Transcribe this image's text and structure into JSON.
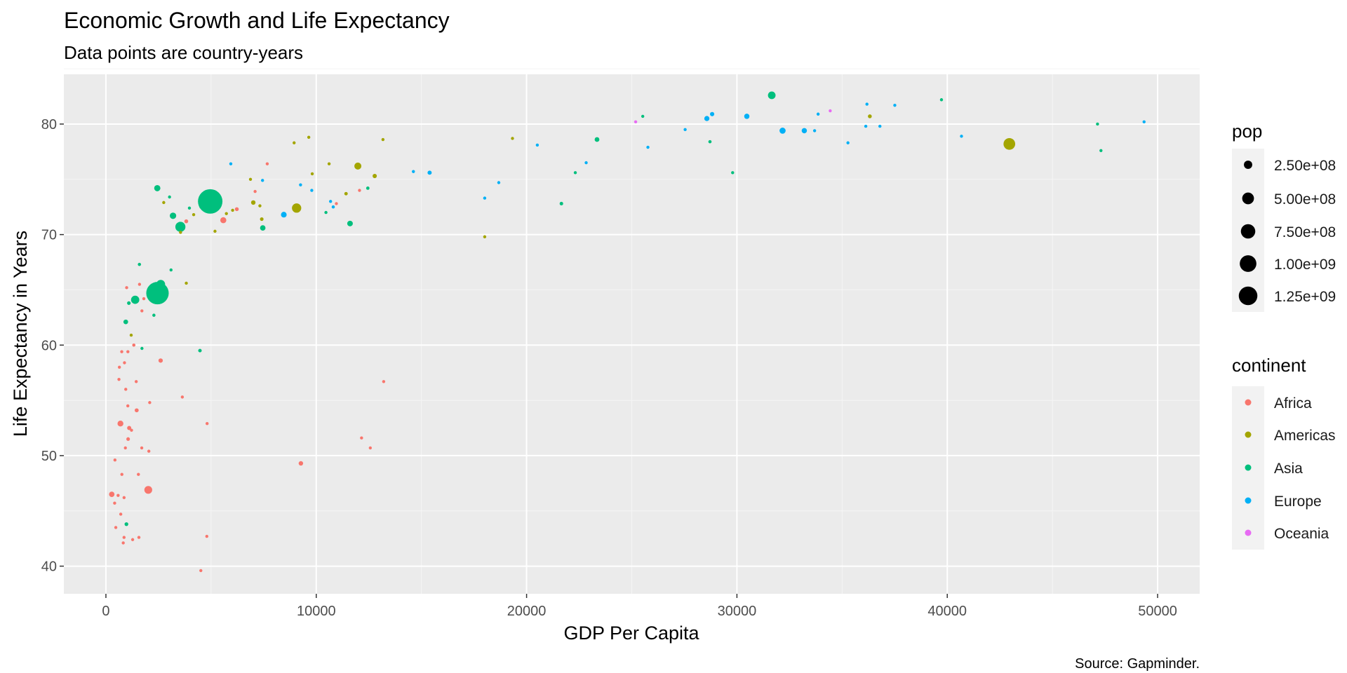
{
  "chart_data": {
    "type": "scatter",
    "title": "Economic Growth and Life Expectancy",
    "subtitle": "Data points are country-years",
    "xlabel": "GDP Per Capita",
    "ylabel": "Life Expectancy in Years",
    "caption": "Source: Gapminder.",
    "xlim": [
      -2000,
      52000
    ],
    "ylim": [
      37.5,
      84.5
    ],
    "x_ticks": [
      0,
      10000,
      20000,
      30000,
      40000,
      50000
    ],
    "x_tick_labels": [
      "0",
      "10000",
      "20000",
      "30000",
      "40000",
      "50000"
    ],
    "y_ticks": [
      40,
      50,
      60,
      70,
      80
    ],
    "y_tick_labels": [
      "40",
      "50",
      "60",
      "70",
      "80"
    ],
    "grid": true,
    "legend_placement": "right",
    "size_legend": {
      "title": "pop",
      "values": [
        250000000,
        500000000,
        750000000,
        1000000000,
        1250000000
      ],
      "labels": [
        "2.50e+08",
        "5.00e+08",
        "7.50e+08",
        "1.00e+09",
        "1.25e+09"
      ]
    },
    "color_legend": {
      "title": "continent",
      "items": [
        {
          "name": "Africa",
          "color": "#F8766D"
        },
        {
          "name": "Americas",
          "color": "#A3A500"
        },
        {
          "name": "Asia",
          "color": "#00BF7D"
        },
        {
          "name": "Europe",
          "color": "#00B0F6"
        },
        {
          "name": "Oceania",
          "color": "#E76BF3"
        }
      ]
    },
    "series": [
      {
        "continent": "Africa",
        "points": [
          [
            6223,
            72.3,
            33000000
          ],
          [
            4797,
            42.7,
            12000000
          ],
          [
            1441,
            56.7,
            8000000
          ],
          [
            12570,
            50.7,
            1600000
          ],
          [
            1217,
            52.3,
            14000000
          ],
          [
            430,
            49.6,
            8000000
          ],
          [
            2042,
            50.4,
            17000000
          ],
          [
            706,
            44.7,
            4400000
          ],
          [
            1704,
            50.7,
            10000000
          ],
          [
            986,
            65.2,
            700000
          ],
          [
            278,
            46.5,
            65000000
          ],
          [
            3633,
            55.3,
            3800000
          ],
          [
            1545,
            48.3,
            18000000
          ],
          [
            2082,
            54.8,
            500000
          ],
          [
            5581,
            71.3,
            80000000
          ],
          [
            12154,
            51.6,
            550000
          ],
          [
            641,
            58.0,
            4900000
          ],
          [
            691,
            52.9,
            76000000
          ],
          [
            13206,
            56.7,
            1450000
          ],
          [
            753,
            59.4,
            1700000
          ],
          [
            1327,
            60.0,
            23000000
          ],
          [
            943,
            56.0,
            9900000
          ],
          [
            580,
            46.4,
            1500000
          ],
          [
            1463,
            54.1,
            35000000
          ],
          [
            1569,
            42.6,
            2000000
          ],
          [
            415,
            45.7,
            3200000
          ],
          [
            12057,
            74.0,
            6000000
          ],
          [
            1045,
            59.4,
            19000000
          ],
          [
            759,
            48.3,
            13300000
          ],
          [
            1042,
            54.5,
            12000000
          ],
          [
            1803,
            64.2,
            3300000
          ],
          [
            10957,
            72.8,
            1250000
          ],
          [
            3820,
            71.2,
            33000000
          ],
          [
            824,
            42.1,
            20000000
          ],
          [
            4811,
            52.9,
            2000000
          ],
          [
            620,
            56.9,
            12900000
          ],
          [
            2014,
            46.9,
            135000000
          ],
          [
            7670,
            76.4,
            800000
          ],
          [
            863,
            46.2,
            8900000
          ],
          [
            1598,
            65.5,
            200000
          ],
          [
            1712,
            63.1,
            12000000
          ],
          [
            862,
            42.6,
            6100000
          ],
          [
            926,
            50.7,
            9100000
          ],
          [
            9270,
            49.3,
            44000000
          ],
          [
            2602,
            58.6,
            42000000
          ],
          [
            4513,
            39.6,
            1100000
          ],
          [
            1107,
            52.5,
            38000000
          ],
          [
            883,
            58.4,
            5700000
          ],
          [
            7093,
            73.9,
            10000000
          ],
          [
            1056,
            51.5,
            29000000
          ],
          [
            1271,
            42.4,
            11700000
          ],
          [
            470,
            43.5,
            12300000
          ]
        ]
      },
      {
        "continent": "Americas",
        "points": [
          [
            12779,
            75.3,
            40000000
          ],
          [
            3822,
            65.6,
            9100000
          ],
          [
            9066,
            72.4,
            190000000
          ],
          [
            36319,
            80.7,
            33000000
          ],
          [
            13172,
            78.6,
            16000000
          ],
          [
            7007,
            72.9,
            44000000
          ],
          [
            9645,
            78.8,
            4100000
          ],
          [
            8948,
            78.3,
            11400000
          ],
          [
            6025,
            72.2,
            9300000
          ],
          [
            6873,
            75.0,
            13700000
          ],
          [
            5728,
            71.9,
            6900000
          ],
          [
            5186,
            70.3,
            12500000
          ],
          [
            1202,
            60.9,
            8500000
          ],
          [
            3548,
            70.2,
            7500000
          ],
          [
            7321,
            72.6,
            2800000
          ],
          [
            11978,
            76.2,
            108000000
          ],
          [
            2749,
            72.9,
            5700000
          ],
          [
            9809,
            75.5,
            3200000
          ],
          [
            4173,
            71.8,
            6700000
          ],
          [
            7409,
            71.4,
            28700000
          ],
          [
            19329,
            78.7,
            4000000
          ],
          [
            18009,
            69.8,
            1100000
          ],
          [
            42952,
            78.2,
            301000000
          ],
          [
            10611,
            76.4,
            3500000
          ],
          [
            11416,
            73.7,
            26000000
          ]
        ]
      },
      {
        "continent": "Asia",
        "points": [
          [
            975,
            43.8,
            31000000
          ],
          [
            29796,
            75.6,
            700000
          ],
          [
            1391,
            64.1,
            150000000
          ],
          [
            1714,
            59.7,
            14000000
          ],
          [
            4959,
            73.0,
            1319000000
          ],
          [
            39725,
            82.2,
            6900000
          ],
          [
            2452,
            64.7,
            1110000000
          ],
          [
            3541,
            70.7,
            223000000
          ],
          [
            11606,
            71.0,
            69000000
          ],
          [
            4471,
            59.5,
            27000000
          ],
          [
            25523,
            80.7,
            6400000
          ],
          [
            31656,
            82.6,
            127000000
          ],
          [
            4519,
            72.5,
            6000000
          ],
          [
            1593,
            67.3,
            23000000
          ],
          [
            23348,
            78.6,
            49000000
          ],
          [
            47307,
            77.6,
            2500000
          ],
          [
            10461,
            72.0,
            4000000
          ],
          [
            12452,
            74.2,
            24800000
          ],
          [
            3096,
            66.8,
            2900000
          ],
          [
            944,
            62.1,
            47800000
          ],
          [
            1091,
            63.8,
            28900000
          ],
          [
            22316,
            75.6,
            3200000
          ],
          [
            2606,
            65.5,
            169000000
          ],
          [
            3190,
            71.7,
            91000000
          ],
          [
            21655,
            72.8,
            27600000
          ],
          [
            47143,
            80.0,
            4500000
          ],
          [
            3970,
            72.4,
            20400000
          ],
          [
            28718,
            78.4,
            23200000
          ],
          [
            7458,
            70.6,
            65000000
          ],
          [
            2442,
            74.2,
            85000000
          ],
          [
            3025,
            73.4,
            4000000
          ],
          [
            2281,
            62.7,
            22200000
          ]
        ]
      },
      {
        "continent": "Europe",
        "points": [
          [
            5937,
            76.4,
            3600000
          ],
          [
            36126,
            79.8,
            8200000
          ],
          [
            33693,
            79.4,
            10400000
          ],
          [
            7446,
            74.9,
            4600000
          ],
          [
            10681,
            73.0,
            7300000
          ],
          [
            14619,
            75.7,
            4500000
          ],
          [
            22833,
            76.5,
            10200000
          ],
          [
            35278,
            78.3,
            5500000
          ],
          [
            33207,
            79.3,
            5200000
          ],
          [
            30470,
            80.7,
            61000000
          ],
          [
            32170,
            79.4,
            82400000
          ],
          [
            27538,
            79.5,
            10700000
          ],
          [
            18009,
            73.3,
            9900000
          ],
          [
            36181,
            81.8,
            300000
          ],
          [
            40676,
            78.9,
            4100000
          ],
          [
            28570,
            80.5,
            58000000
          ],
          [
            9253,
            74.5,
            700000
          ],
          [
            36798,
            79.8,
            16600000
          ],
          [
            49357,
            80.2,
            4600000
          ],
          [
            15390,
            75.6,
            38500000
          ],
          [
            20510,
            78.1,
            10600000
          ],
          [
            10808,
            72.5,
            22300000
          ],
          [
            9787,
            74.0,
            10200000
          ],
          [
            18678,
            74.7,
            5400000
          ],
          [
            25768,
            77.9,
            2000000
          ],
          [
            28821,
            80.9,
            40400000
          ],
          [
            33860,
            80.9,
            9000000
          ],
          [
            37506,
            81.7,
            7500000
          ],
          [
            8458,
            71.8,
            71000000
          ],
          [
            33203,
            79.4,
            60800000
          ]
        ]
      },
      {
        "continent": "Oceania",
        "points": [
          [
            34435,
            81.2,
            20400000
          ],
          [
            25185,
            80.2,
            4100000
          ]
        ]
      }
    ]
  }
}
